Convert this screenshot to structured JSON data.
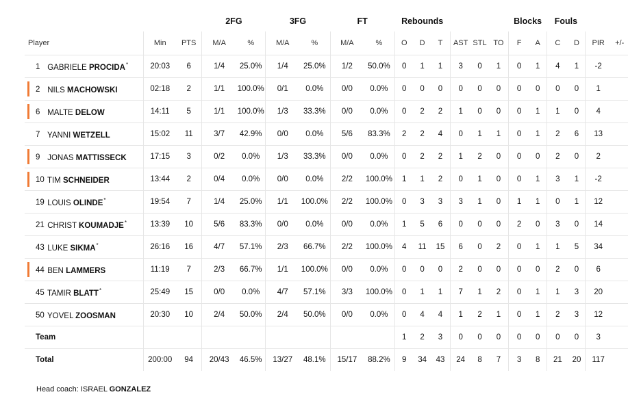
{
  "groups": {
    "fg2": "2FG",
    "fg3": "3FG",
    "ft": "FT",
    "rebounds": "Rebounds",
    "blocks": "Blocks",
    "fouls": "Fouls"
  },
  "columns": {
    "player": "Player",
    "min": "Min",
    "pts": "PTS",
    "ma": "M/A",
    "pct": "%",
    "o": "O",
    "d": "D",
    "t": "T",
    "ast": "AST",
    "stl": "STL",
    "to": "TO",
    "f": "F",
    "a": "A",
    "c": "C",
    "dd": "D",
    "pir": "PIR",
    "pm": "+/-"
  },
  "players": [
    {
      "num": "1",
      "first": "GABRIELE",
      "last": "PROCIDA",
      "mark": "*",
      "min": "20:03",
      "pts": "6",
      "fg2": "1/4",
      "fg2p": "25.0%",
      "fg3": "1/4",
      "fg3p": "25.0%",
      "ft": "1/2",
      "ftp": "50.0%",
      "o": "0",
      "d": "1",
      "t": "1",
      "ast": "3",
      "stl": "0",
      "to": "1",
      "bf": "0",
      "ba": "1",
      "fc": "4",
      "fd": "1",
      "pir": "-2",
      "pm": ""
    },
    {
      "num": "2",
      "first": "NILS",
      "last": "MACHOWSKI",
      "mark": "",
      "min": "02:18",
      "pts": "2",
      "fg2": "1/1",
      "fg2p": "100.0%",
      "fg3": "0/1",
      "fg3p": "0.0%",
      "ft": "0/0",
      "ftp": "0.0%",
      "o": "0",
      "d": "0",
      "t": "0",
      "ast": "0",
      "stl": "0",
      "to": "0",
      "bf": "0",
      "ba": "0",
      "fc": "0",
      "fd": "0",
      "pir": "1",
      "pm": ""
    },
    {
      "num": "6",
      "first": "MALTE",
      "last": "DELOW",
      "mark": "",
      "min": "14:11",
      "pts": "5",
      "fg2": "1/1",
      "fg2p": "100.0%",
      "fg3": "1/3",
      "fg3p": "33.3%",
      "ft": "0/0",
      "ftp": "0.0%",
      "o": "0",
      "d": "2",
      "t": "2",
      "ast": "1",
      "stl": "0",
      "to": "0",
      "bf": "0",
      "ba": "1",
      "fc": "1",
      "fd": "0",
      "pir": "4",
      "pm": ""
    },
    {
      "num": "7",
      "first": "YANNI",
      "last": "WETZELL",
      "mark": "",
      "min": "15:02",
      "pts": "11",
      "fg2": "3/7",
      "fg2p": "42.9%",
      "fg3": "0/0",
      "fg3p": "0.0%",
      "ft": "5/6",
      "ftp": "83.3%",
      "o": "2",
      "d": "2",
      "t": "4",
      "ast": "0",
      "stl": "1",
      "to": "1",
      "bf": "0",
      "ba": "1",
      "fc": "2",
      "fd": "6",
      "pir": "13",
      "pm": ""
    },
    {
      "num": "9",
      "first": "JONAS",
      "last": "MATTISSECK",
      "mark": "",
      "min": "17:15",
      "pts": "3",
      "fg2": "0/2",
      "fg2p": "0.0%",
      "fg3": "1/3",
      "fg3p": "33.3%",
      "ft": "0/0",
      "ftp": "0.0%",
      "o": "0",
      "d": "2",
      "t": "2",
      "ast": "1",
      "stl": "2",
      "to": "0",
      "bf": "0",
      "ba": "0",
      "fc": "2",
      "fd": "0",
      "pir": "2",
      "pm": ""
    },
    {
      "num": "10",
      "first": "TIM",
      "last": "SCHNEIDER",
      "mark": "",
      "min": "13:44",
      "pts": "2",
      "fg2": "0/4",
      "fg2p": "0.0%",
      "fg3": "0/0",
      "fg3p": "0.0%",
      "ft": "2/2",
      "ftp": "100.0%",
      "o": "1",
      "d": "1",
      "t": "2",
      "ast": "0",
      "stl": "1",
      "to": "0",
      "bf": "0",
      "ba": "1",
      "fc": "3",
      "fd": "1",
      "pir": "-2",
      "pm": ""
    },
    {
      "num": "19",
      "first": "LOUIS",
      "last": "OLINDE",
      "mark": "*",
      "min": "19:54",
      "pts": "7",
      "fg2": "1/4",
      "fg2p": "25.0%",
      "fg3": "1/1",
      "fg3p": "100.0%",
      "ft": "2/2",
      "ftp": "100.0%",
      "o": "0",
      "d": "3",
      "t": "3",
      "ast": "3",
      "stl": "1",
      "to": "0",
      "bf": "1",
      "ba": "1",
      "fc": "0",
      "fd": "1",
      "pir": "12",
      "pm": ""
    },
    {
      "num": "21",
      "first": "CHRIST",
      "last": "KOUMADJE",
      "mark": "*",
      "min": "13:39",
      "pts": "10",
      "fg2": "5/6",
      "fg2p": "83.3%",
      "fg3": "0/0",
      "fg3p": "0.0%",
      "ft": "0/0",
      "ftp": "0.0%",
      "o": "1",
      "d": "5",
      "t": "6",
      "ast": "0",
      "stl": "0",
      "to": "0",
      "bf": "2",
      "ba": "0",
      "fc": "3",
      "fd": "0",
      "pir": "14",
      "pm": ""
    },
    {
      "num": "43",
      "first": "LUKE",
      "last": "SIKMA",
      "mark": "*",
      "min": "26:16",
      "pts": "16",
      "fg2": "4/7",
      "fg2p": "57.1%",
      "fg3": "2/3",
      "fg3p": "66.7%",
      "ft": "2/2",
      "ftp": "100.0%",
      "o": "4",
      "d": "11",
      "t": "15",
      "ast": "6",
      "stl": "0",
      "to": "2",
      "bf": "0",
      "ba": "1",
      "fc": "1",
      "fd": "5",
      "pir": "34",
      "pm": ""
    },
    {
      "num": "44",
      "first": "BEN",
      "last": "LAMMERS",
      "mark": "",
      "min": "11:19",
      "pts": "7",
      "fg2": "2/3",
      "fg2p": "66.7%",
      "fg3": "1/1",
      "fg3p": "100.0%",
      "ft": "0/0",
      "ftp": "0.0%",
      "o": "0",
      "d": "0",
      "t": "0",
      "ast": "2",
      "stl": "0",
      "to": "0",
      "bf": "0",
      "ba": "0",
      "fc": "2",
      "fd": "0",
      "pir": "6",
      "pm": ""
    },
    {
      "num": "45",
      "first": "TAMIR",
      "last": "BLATT",
      "mark": "*",
      "min": "25:49",
      "pts": "15",
      "fg2": "0/0",
      "fg2p": "0.0%",
      "fg3": "4/7",
      "fg3p": "57.1%",
      "ft": "3/3",
      "ftp": "100.0%",
      "o": "0",
      "d": "1",
      "t": "1",
      "ast": "7",
      "stl": "1",
      "to": "2",
      "bf": "0",
      "ba": "1",
      "fc": "1",
      "fd": "3",
      "pir": "20",
      "pm": ""
    },
    {
      "num": "50",
      "first": "YOVEL",
      "last": "ZOOSMAN",
      "mark": "",
      "min": "20:30",
      "pts": "10",
      "fg2": "2/4",
      "fg2p": "50.0%",
      "fg3": "2/4",
      "fg3p": "50.0%",
      "ft": "0/0",
      "ftp": "0.0%",
      "o": "0",
      "d": "4",
      "t": "4",
      "ast": "1",
      "stl": "2",
      "to": "1",
      "bf": "0",
      "ba": "1",
      "fc": "2",
      "fd": "3",
      "pir": "12",
      "pm": ""
    }
  ],
  "team": {
    "label": "Team",
    "o": "1",
    "d": "2",
    "t": "3",
    "ast": "0",
    "stl": "0",
    "to": "0",
    "bf": "0",
    "ba": "0",
    "fc": "0",
    "fd": "0",
    "pir": "3"
  },
  "total": {
    "label": "Total",
    "min": "200:00",
    "pts": "94",
    "fg2": "20/43",
    "fg2p": "46.5%",
    "fg3": "13/27",
    "fg3p": "48.1%",
    "ft": "15/17",
    "ftp": "88.2%",
    "o": "9",
    "d": "34",
    "t": "43",
    "ast": "24",
    "stl": "8",
    "to": "7",
    "bf": "3",
    "ba": "8",
    "fc": "21",
    "fd": "20",
    "pir": "117"
  },
  "coach": {
    "label": "Head coach:",
    "first": "ISRAEL",
    "last": "GONZALEZ"
  },
  "colors": {
    "starter_bar": "#f07a34",
    "divider": "#e6e6e6"
  }
}
